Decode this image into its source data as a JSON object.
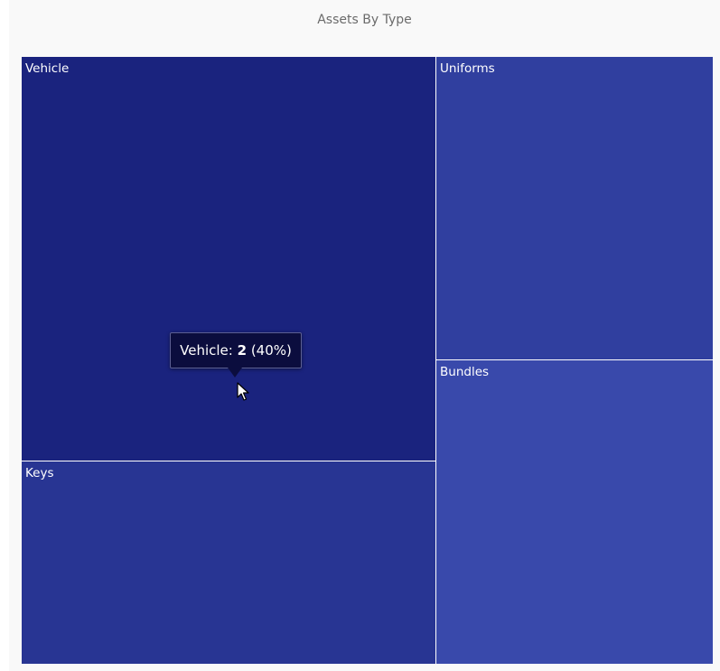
{
  "chart_data": {
    "type": "treemap",
    "title": "Assets By Type",
    "items": [
      {
        "name": "Vehicle",
        "value": 2,
        "color": "#1a237e"
      },
      {
        "name": "Keys",
        "value": 1,
        "color": "#283593"
      },
      {
        "name": "Uniforms",
        "value": 1,
        "color": "#303f9f"
      },
      {
        "name": "Bundles",
        "value": 1,
        "color": "#3949ab"
      }
    ]
  },
  "tooltip": {
    "name": "Vehicle",
    "separator": ": ",
    "value": "2",
    "percent": " (40%)"
  },
  "icons": {
    "cursor": "mouse-pointer-icon"
  }
}
